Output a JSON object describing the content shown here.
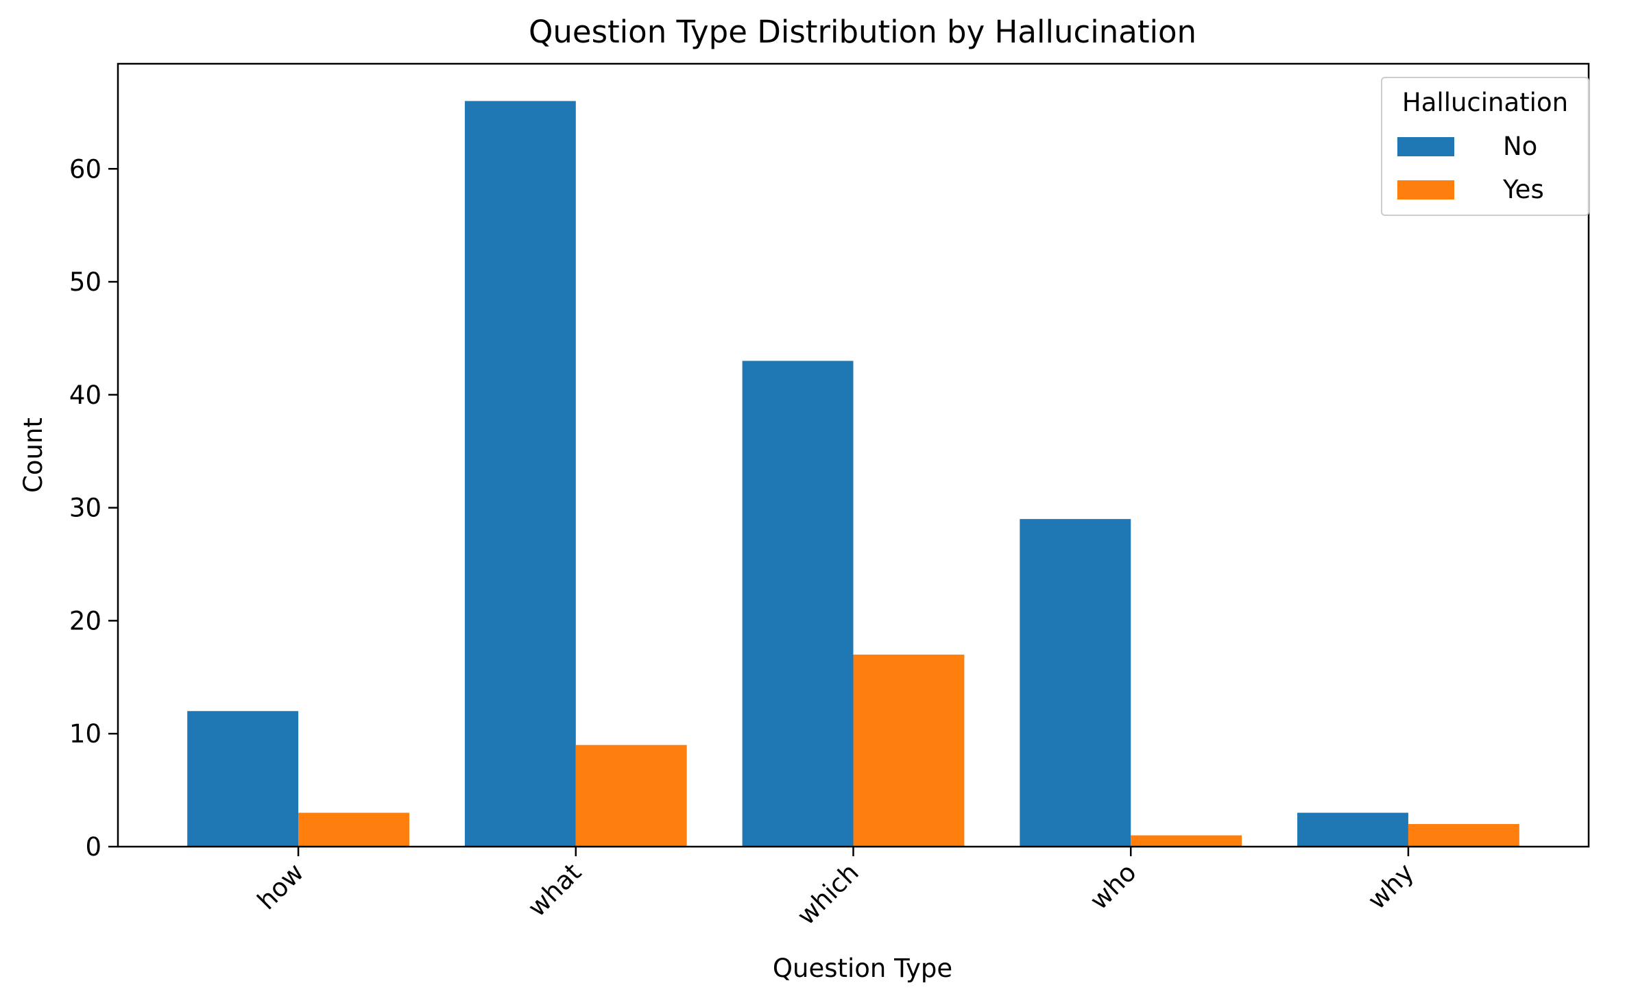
{
  "chart_data": {
    "type": "bar",
    "title": "Question Type Distribution by Hallucination",
    "xlabel": "Question Type",
    "ylabel": "Count",
    "categories": [
      "how",
      "what",
      "which",
      "who",
      "why"
    ],
    "series": [
      {
        "name": "No",
        "values": [
          12,
          66,
          43,
          29,
          3
        ],
        "color": "#1f77b4"
      },
      {
        "name": "Yes",
        "values": [
          3,
          9,
          17,
          1,
          2
        ],
        "color": "#ff7f0e"
      }
    ],
    "ylim": [
      0,
      69.3
    ],
    "yticks": [
      0,
      10,
      20,
      30,
      40,
      50,
      60
    ],
    "xtick_rotation": 45,
    "grid": false,
    "legend": {
      "title": "Hallucination",
      "placement": "top-right"
    }
  }
}
